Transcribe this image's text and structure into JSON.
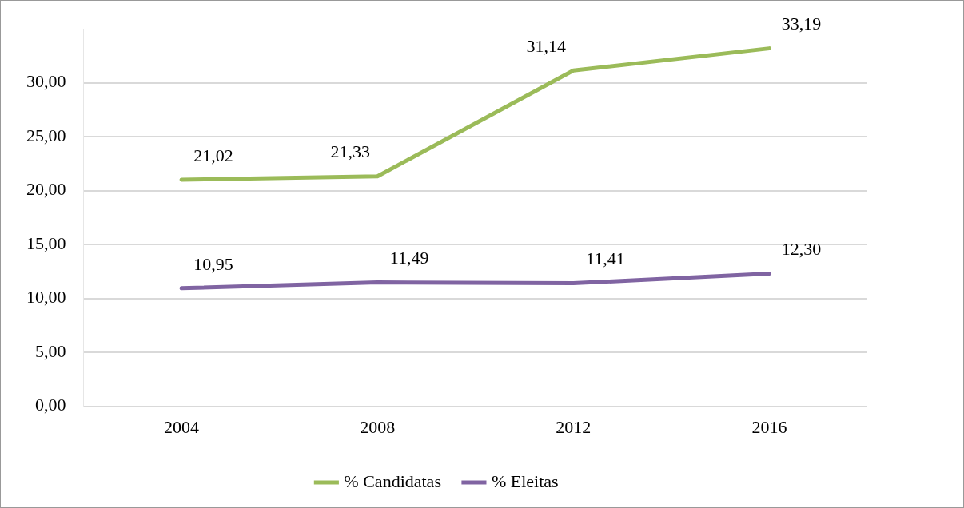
{
  "chart_data": {
    "type": "line",
    "categories": [
      "2004",
      "2008",
      "2012",
      "2016"
    ],
    "series": [
      {
        "name": "% Candidatas",
        "color": "#9bbb59",
        "values": [
          21.02,
          21.33,
          31.14,
          33.19
        ],
        "value_labels": [
          "21,02",
          "21,33",
          "31,14",
          "33,19"
        ]
      },
      {
        "name": "% Eleitas",
        "color": "#8064a2",
        "values": [
          10.95,
          11.49,
          11.41,
          12.3
        ],
        "value_labels": [
          "10,95",
          "11,49",
          "11,41",
          "12,30"
        ]
      }
    ],
    "ylim": [
      0,
      35
    ],
    "yticks": [
      {
        "value": 0,
        "label": "0,00"
      },
      {
        "value": 5,
        "label": "5,00"
      },
      {
        "value": 10,
        "label": "10,00"
      },
      {
        "value": 15,
        "label": "15,00"
      },
      {
        "value": 20,
        "label": "20,00"
      },
      {
        "value": 25,
        "label": "25,00"
      },
      {
        "value": 30,
        "label": "30,00"
      }
    ],
    "grid": "y",
    "legend": "bottom",
    "marker": "none",
    "line_style": "solid"
  }
}
